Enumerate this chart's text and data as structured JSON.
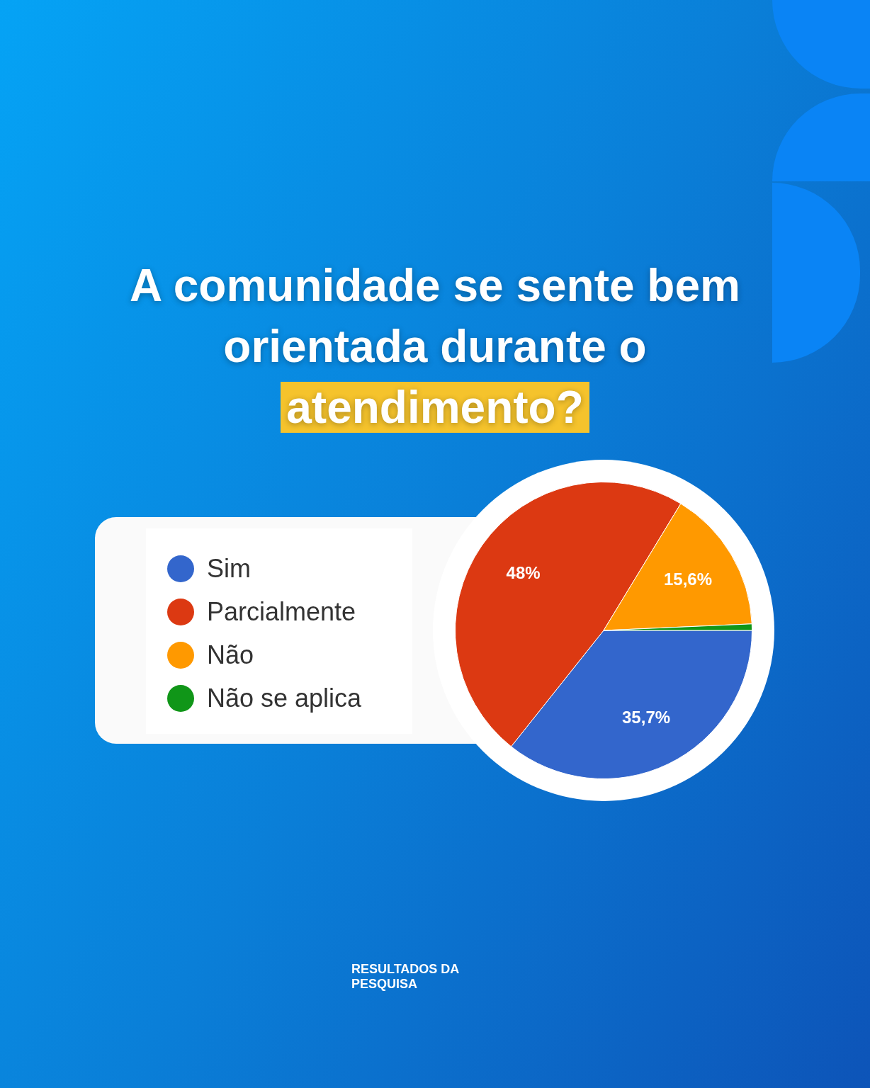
{
  "chart_data": {
    "type": "pie",
    "title": "A comunidade se sente bem orientada durante o atendimento?",
    "categories": [
      "Sim",
      "Parcialmente",
      "Não",
      "Não se aplica"
    ],
    "values": [
      35.7,
      48,
      15.6,
      0.7
    ],
    "colors": [
      "#3366cc",
      "#dc3912",
      "#ff9900",
      "#109618"
    ],
    "value_labels": [
      "35,7%",
      "48%",
      "15,6%",
      null
    ],
    "legend": "left",
    "annotations": [
      "RESULTADOS DA PESQUISA"
    ]
  }
}
